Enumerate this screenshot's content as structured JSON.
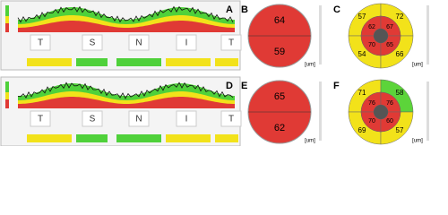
{
  "rows": [
    {
      "tsnit": {
        "letter": "A",
        "labels": [
          "T",
          "S",
          "N",
          "I",
          "T"
        ]
      },
      "average": {
        "letter": "B",
        "superior": 64,
        "inferior": 59,
        "unit": "[um]"
      },
      "sectors": {
        "letter": "C",
        "outer": [
          57,
          72,
          54,
          66
        ],
        "inner": [
          62,
          67,
          70,
          65
        ],
        "outer_colors": [
          "#f2e21a",
          "#f2e21a",
          "#f2e21a",
          "#f2e21a"
        ],
        "unit": "[um]"
      }
    },
    {
      "tsnit": {
        "letter": "D",
        "labels": [
          "T",
          "S",
          "N",
          "I",
          "T"
        ]
      },
      "average": {
        "letter": "E",
        "superior": 65,
        "inferior": 62,
        "unit": "[um]"
      },
      "sectors": {
        "letter": "F",
        "outer": [
          71,
          58,
          69,
          57
        ],
        "inner": [
          76,
          76,
          70,
          60
        ],
        "outer_colors": [
          "#f2e21a",
          "#5cd43a",
          "#f2e21a",
          "#f2e21a"
        ],
        "unit": "[um]"
      }
    }
  ]
}
